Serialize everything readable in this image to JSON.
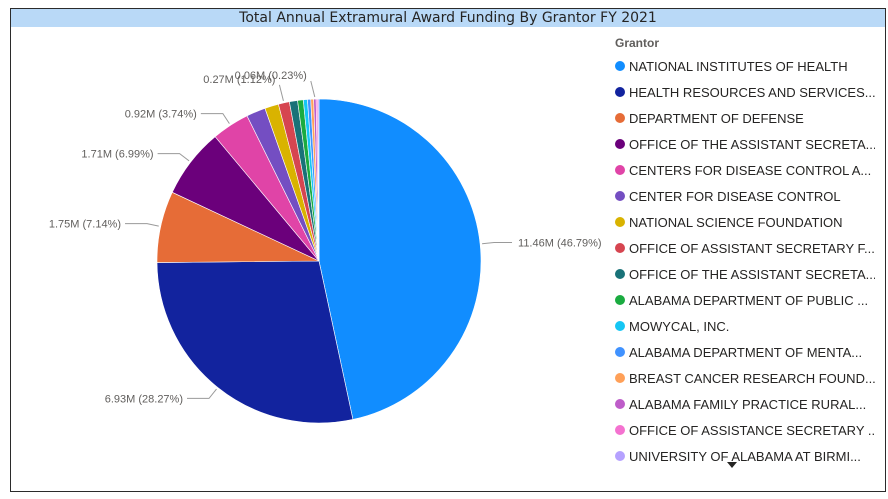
{
  "chart_data": {
    "type": "pie",
    "title": "Total Annual Extramural Award Funding By Grantor FY 2021",
    "legend_title": "Grantor",
    "legend_position": "right",
    "slices": [
      {
        "name": "NATIONAL INSTITUTES OF HEALTH",
        "value": 11.46,
        "percent": 46.79,
        "label": "11.46M (46.79%)",
        "color": "#118DFF"
      },
      {
        "name": "HEALTH RESOURCES AND SERVICES...",
        "value": 6.93,
        "percent": 28.27,
        "label": "6.93M (28.27%)",
        "color": "#12239E"
      },
      {
        "name": "DEPARTMENT OF DEFENSE",
        "value": 1.75,
        "percent": 7.14,
        "label": "1.75M (7.14%)",
        "color": "#E66C37"
      },
      {
        "name": "OFFICE OF THE ASSISTANT SECRETA...",
        "value": 1.71,
        "percent": 6.99,
        "label": "1.71M (6.99%)",
        "color": "#6B007B"
      },
      {
        "name": "CENTERS FOR DISEASE CONTROL A...",
        "value": 0.92,
        "percent": 3.74,
        "label": "0.92M (3.74%)",
        "color": "#E044A7"
      },
      {
        "name": "CENTER FOR DISEASE CONTROL",
        "value": 0.47,
        "percent": 1.92,
        "label": "",
        "color": "#744EC2"
      },
      {
        "name": "NATIONAL SCIENCE FOUNDATION",
        "value": 0.34,
        "percent": 1.38,
        "label": "",
        "color": "#D9B300"
      },
      {
        "name": "OFFICE OF ASSISTANT SECRETARY F...",
        "value": 0.27,
        "percent": 1.12,
        "label": "0.27M (1.12%)",
        "color": "#D64550"
      },
      {
        "name": "OFFICE OF THE ASSISTANT SECRETA...",
        "value": 0.2,
        "percent": 0.82,
        "label": "",
        "color": "#197278"
      },
      {
        "name": "ALABAMA DEPARTMENT OF PUBLIC ...",
        "value": 0.14,
        "percent": 0.57,
        "label": "",
        "color": "#1AAB40"
      },
      {
        "name": "MOWYCAL, INC.",
        "value": 0.1,
        "percent": 0.42,
        "label": "",
        "color": "#15C6F4"
      },
      {
        "name": "ALABAMA DEPARTMENT OF MENTA...",
        "value": 0.08,
        "percent": 0.33,
        "label": "",
        "color": "#4092FF"
      },
      {
        "name": "BREAST CANCER RESEARCH FOUND...",
        "value": 0.07,
        "percent": 0.28,
        "label": "",
        "color": "#FFA058"
      },
      {
        "name": "ALABAMA FAMILY PRACTICE RURAL...",
        "value": 0.06,
        "percent": 0.23,
        "label": "0.06M (0.23%)",
        "color": "#BE5DC9"
      },
      {
        "name": "OFFICE OF ASSISTANCE SECRETARY ...",
        "value": 0.04,
        "percent": 0.17,
        "label": "",
        "color": "#F472D0"
      },
      {
        "name": "UNIVERSITY OF ALABAMA AT BIRMI...",
        "value": 0.03,
        "percent": 0.12,
        "label": "",
        "color": "#B5A1FF"
      }
    ]
  },
  "legend_more_icon": "caret-down-icon"
}
